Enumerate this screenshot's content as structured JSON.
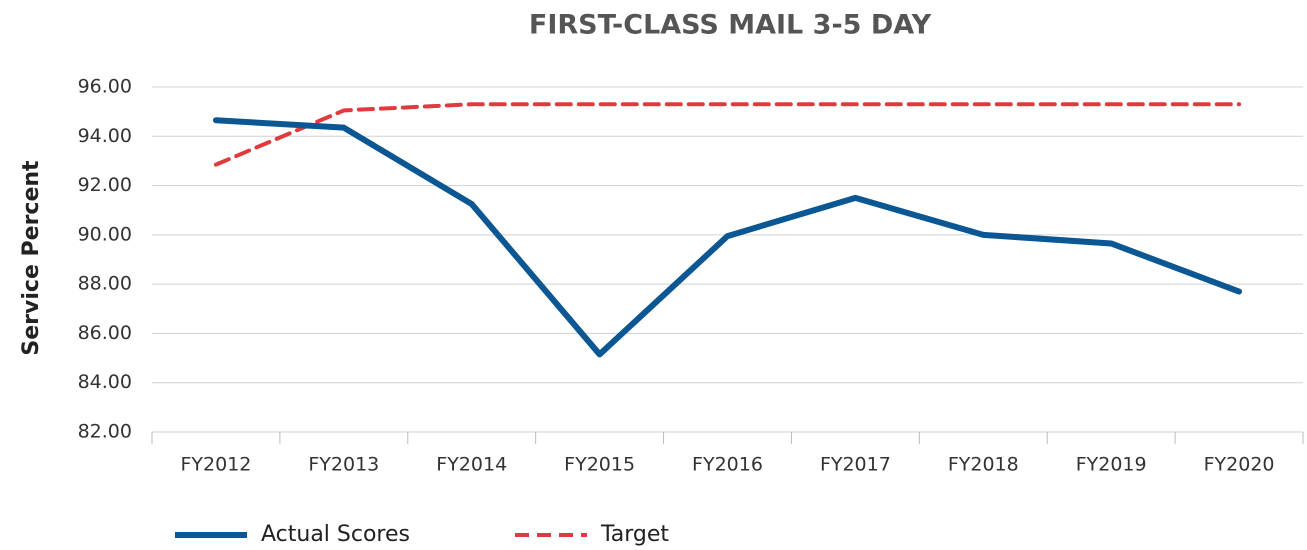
{
  "chart_data": {
    "type": "line",
    "title": "FIRST-CLASS MAIL 3-5 DAY",
    "y_label": "Service Percent",
    "categories": [
      "FY2012",
      "FY2013",
      "FY2014",
      "FY2015",
      "FY2016",
      "FY2017",
      "FY2018",
      "FY2019",
      "FY2020"
    ],
    "series": [
      {
        "name": "Actual Scores",
        "color": "#0b5794",
        "dash": "solid",
        "values": [
          94.65,
          94.35,
          91.25,
          85.15,
          89.95,
          91.5,
          90.0,
          89.65,
          87.7
        ]
      },
      {
        "name": "Target",
        "color": "#e03a3e",
        "dash": "dashed",
        "values": [
          92.85,
          95.05,
          95.3,
          95.3,
          95.3,
          95.3,
          95.3,
          95.3,
          95.3
        ]
      }
    ],
    "ylim": [
      82,
      96
    ],
    "yticks": [
      {
        "value": 82,
        "label": "82.00"
      },
      {
        "value": 84,
        "label": "84.00"
      },
      {
        "value": 86,
        "label": "86.00"
      },
      {
        "value": 88,
        "label": "88.00"
      },
      {
        "value": 90,
        "label": "90.00"
      },
      {
        "value": 92,
        "label": "92.00"
      },
      {
        "value": 94,
        "label": "94.00"
      },
      {
        "value": 96,
        "label": "96.00"
      }
    ],
    "grid": true,
    "legend": "bottom-left"
  }
}
